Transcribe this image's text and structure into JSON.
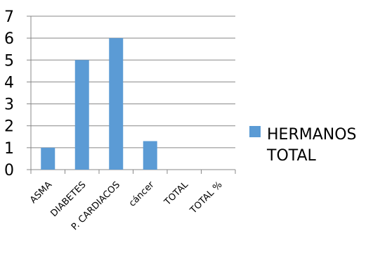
{
  "chart_data": {
    "type": "bar",
    "categories": [
      "ASMA",
      "DIABETES",
      "P. CARDIACOS",
      "cáncer",
      "TOTAL",
      "TOTAL %"
    ],
    "series": [
      {
        "name": "HERMANOS TOTAL",
        "values": [
          1,
          5,
          6,
          1.3,
          0,
          0
        ],
        "color": "#5b9bd5"
      }
    ],
    "yticks": [
      "0",
      "1",
      "2",
      "3",
      "4",
      "5",
      "6",
      "7"
    ],
    "ylim": [
      0,
      7
    ],
    "grid": true,
    "legend_position": "right",
    "legend": {
      "line1": "HERMANOS",
      "line2": "TOTAL"
    }
  }
}
